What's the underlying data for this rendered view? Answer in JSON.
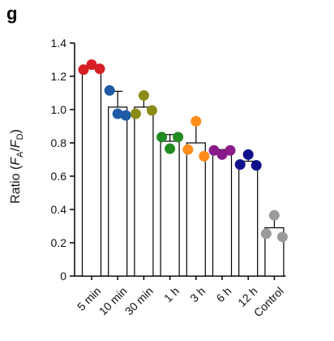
{
  "panel_label": "g",
  "chart_data": {
    "type": "bar",
    "ylabel": {
      "prefix": "Ratio (",
      "var1": "F",
      "sub1": "A",
      "slash": "/",
      "var2": "F",
      "sub2": "D",
      "suffix": ")"
    },
    "ylim": [
      0,
      1.4
    ],
    "yticks": [
      0,
      0.2,
      0.4,
      0.6,
      0.8,
      1.0,
      1.2,
      1.4
    ],
    "ytick_labels": [
      "0",
      "0.2",
      "0.4",
      "0.6",
      "0.8",
      "1.0",
      "1.2",
      "1.4"
    ],
    "categories": [
      "5 min",
      "10 min",
      "30 min",
      "1 h",
      "3 h",
      "6 h",
      "12 h",
      "Control"
    ],
    "bar_values": [
      1.255,
      1.015,
      1.015,
      0.81,
      0.8,
      0.745,
      0.69,
      0.29
    ],
    "error_upper": [
      1.27,
      1.11,
      1.09,
      0.85,
      0.93,
      0.76,
      0.73,
      0.36
    ],
    "points": [
      [
        1.24,
        1.27,
        1.245
      ],
      [
        1.115,
        0.975,
        0.965
      ],
      [
        0.975,
        1.085,
        0.995
      ],
      [
        0.835,
        0.765,
        0.835
      ],
      [
        0.76,
        0.93,
        0.72
      ],
      [
        0.755,
        0.73,
        0.755
      ],
      [
        0.67,
        0.73,
        0.665
      ],
      [
        0.255,
        0.365,
        0.235
      ]
    ],
    "point_colors": [
      "#d71f26",
      "#1f5aa6",
      "#8b8b17",
      "#228b22",
      "#ff8c1a",
      "#8b1a8b",
      "#10108a",
      "#9a9a9a"
    ],
    "grid": false,
    "legend": "none"
  }
}
